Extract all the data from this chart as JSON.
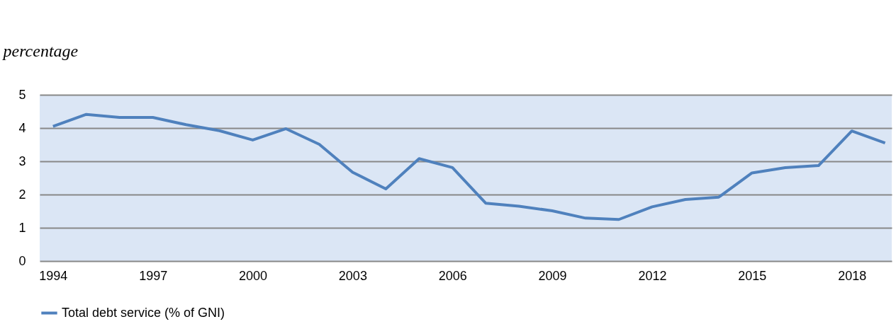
{
  "chart_data": {
    "type": "line",
    "ylabel": "percentage",
    "x": [
      1994,
      1995,
      1996,
      1997,
      1998,
      1999,
      2000,
      2001,
      2002,
      2003,
      2004,
      2005,
      2006,
      2007,
      2008,
      2009,
      2010,
      2011,
      2012,
      2013,
      2014,
      2015,
      2016,
      2017,
      2018,
      2019
    ],
    "series": [
      {
        "name": "Total debt service (% of GNI)",
        "color": "#4f81bd",
        "values": [
          4.05,
          4.41,
          4.32,
          4.32,
          4.1,
          3.92,
          3.64,
          3.98,
          3.51,
          2.67,
          2.17,
          3.08,
          2.81,
          1.74,
          1.65,
          1.51,
          1.29,
          1.25,
          1.63,
          1.85,
          1.92,
          2.65,
          2.81,
          2.87,
          3.91,
          3.55
        ]
      }
    ],
    "xlim": [
      1993.6,
      2019.2
    ],
    "xticks": [
      1994,
      1997,
      2000,
      2003,
      2006,
      2009,
      2012,
      2015,
      2018
    ],
    "ylim": [
      0,
      5
    ],
    "yticks": [
      0,
      1,
      2,
      3,
      4,
      5
    ],
    "grid": "y",
    "legend": "bottom",
    "marker": "none",
    "line_style": "solid"
  }
}
